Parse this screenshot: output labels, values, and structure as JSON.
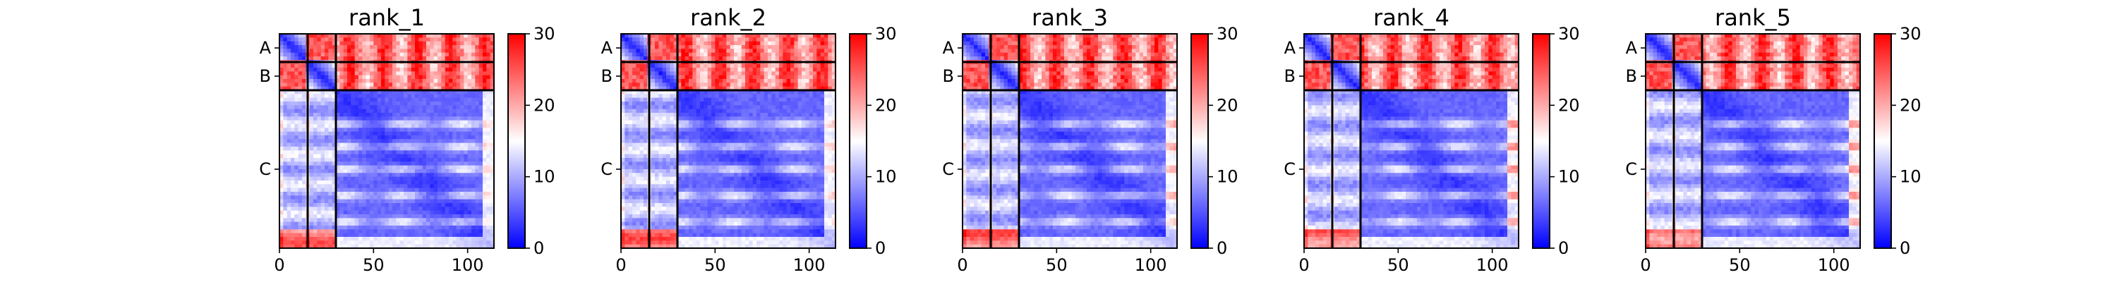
{
  "chart_data": {
    "type": "heatmap",
    "colormap": [
      "#0000ff",
      "#ffffff",
      "#ff0000"
    ],
    "x_range": [
      0,
      114
    ],
    "clim": [
      0,
      30
    ],
    "x_ticks": [
      0,
      50,
      100
    ],
    "colorbar_ticks": [
      0,
      10,
      20,
      30
    ],
    "chains": [
      {
        "name": "A",
        "start": 0,
        "end": 15
      },
      {
        "name": "B",
        "start": 15,
        "end": 30
      },
      {
        "name": "C",
        "start": 30,
        "end": 114
      }
    ],
    "panels": [
      {
        "title": "rank_1"
      },
      {
        "title": "rank_2"
      },
      {
        "title": "rank_3"
      },
      {
        "title": "rank_4"
      },
      {
        "title": "rank_5"
      }
    ]
  }
}
